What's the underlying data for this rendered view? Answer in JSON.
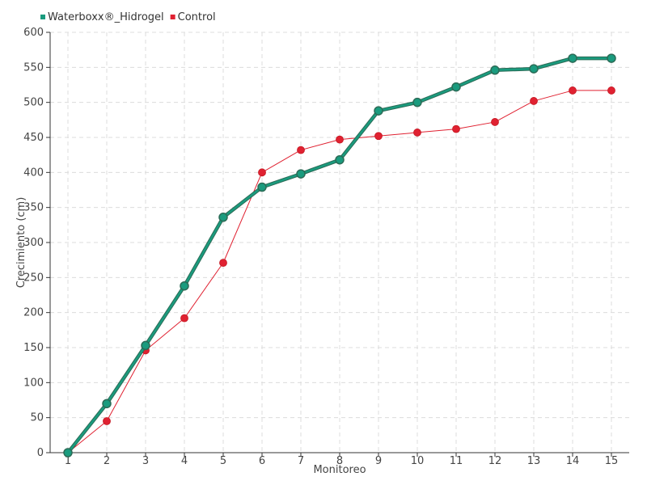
{
  "chart_data": {
    "type": "line",
    "title": "",
    "xlabel": "Monitoreo",
    "ylabel": "Crecimiento (cm)",
    "categories": [
      "1",
      "2",
      "3",
      "4",
      "5",
      "6",
      "7",
      "8",
      "9",
      "10",
      "11",
      "12",
      "13",
      "14",
      "15"
    ],
    "ylim": [
      0,
      600
    ],
    "yticks": [
      0,
      50,
      100,
      150,
      200,
      250,
      300,
      350,
      400,
      450,
      500,
      550,
      600
    ],
    "grid": true,
    "legend_position": "top-left",
    "series": [
      {
        "name": "Waterboxx®_Hidrogel",
        "color": "#1a9b7e",
        "values": [
          0,
          70,
          153,
          238,
          336,
          379,
          398,
          418,
          488,
          500,
          522,
          546,
          548,
          563,
          563
        ]
      },
      {
        "name": "Control",
        "color": "#e02131",
        "values": [
          0,
          45,
          146,
          192,
          271,
          400,
          432,
          447,
          452,
          457,
          462,
          472,
          502,
          517,
          517
        ]
      }
    ]
  }
}
